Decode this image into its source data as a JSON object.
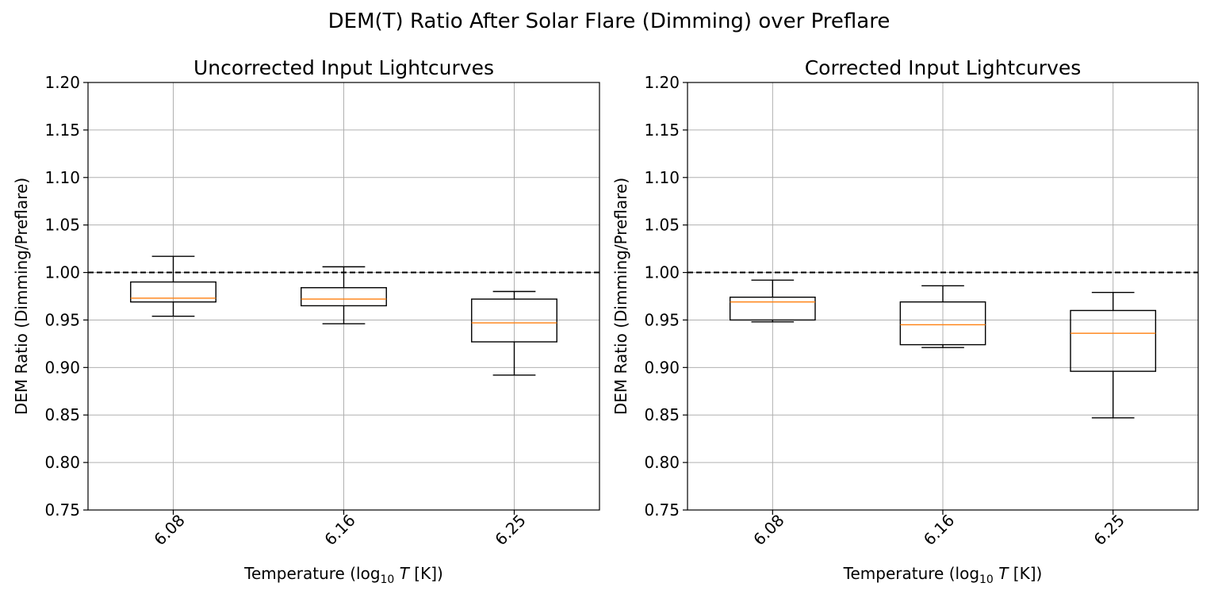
{
  "figure": {
    "suptitle": "DEM(T) Ratio After Solar Flare (Dimming) over Preflare"
  },
  "chart_data": [
    {
      "type": "box",
      "title": "Uncorrected Input Lightcurves",
      "xlabel": "Temperature (log",
      "xlabel_sub": "10",
      "xlabel_var": "T",
      "xlabel_unit": " [K])",
      "ylabel": "DEM Ratio (Dimming/Preflare)",
      "ylim": [
        0.75,
        1.2
      ],
      "yticks": [
        "0.75",
        "0.80",
        "0.85",
        "0.90",
        "0.95",
        "1.00",
        "1.05",
        "1.10",
        "1.15",
        "1.20"
      ],
      "categories": [
        "6.08",
        "6.16",
        "6.25"
      ],
      "reference_line": 1.0,
      "grid": true,
      "boxes": [
        {
          "whislo": 0.954,
          "q1": 0.969,
          "med": 0.973,
          "q3": 0.99,
          "whishi": 1.017
        },
        {
          "whislo": 0.946,
          "q1": 0.965,
          "med": 0.972,
          "q3": 0.984,
          "whishi": 1.006
        },
        {
          "whislo": 0.892,
          "q1": 0.927,
          "med": 0.947,
          "q3": 0.972,
          "whishi": 0.98
        }
      ]
    },
    {
      "type": "box",
      "title": "Corrected Input Lightcurves",
      "xlabel": "Temperature (log",
      "xlabel_sub": "10",
      "xlabel_var": "T",
      "xlabel_unit": " [K])",
      "ylabel": "DEM Ratio (Dimming/Preflare)",
      "ylim": [
        0.75,
        1.2
      ],
      "yticks": [
        "0.75",
        "0.80",
        "0.85",
        "0.90",
        "0.95",
        "1.00",
        "1.05",
        "1.10",
        "1.15",
        "1.20"
      ],
      "categories": [
        "6.08",
        "6.16",
        "6.25"
      ],
      "reference_line": 1.0,
      "grid": true,
      "boxes": [
        {
          "whislo": 0.948,
          "q1": 0.95,
          "med": 0.969,
          "q3": 0.974,
          "whishi": 0.992
        },
        {
          "whislo": 0.921,
          "q1": 0.924,
          "med": 0.945,
          "q3": 0.969,
          "whishi": 0.986
        },
        {
          "whislo": 0.847,
          "q1": 0.896,
          "med": 0.936,
          "q3": 0.96,
          "whishi": 0.979
        }
      ]
    }
  ],
  "style": {
    "median_color": "#ff7f0e",
    "box_color": "#000000",
    "grid_color": "#b0b0b0",
    "reference_color": "#000000"
  }
}
